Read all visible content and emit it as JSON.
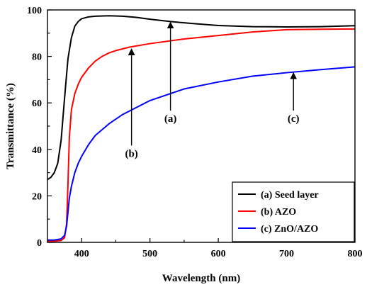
{
  "chart_data": {
    "type": "line",
    "title": "",
    "xlabel": "Wavelength (nm)",
    "ylabel": "Transmittance (%)",
    "xlim": [
      350,
      800
    ],
    "ylim": [
      0,
      100
    ],
    "x_ticks": [
      "400",
      "500",
      "600",
      "700",
      "800"
    ],
    "y_ticks": [
      "0",
      "20",
      "40",
      "60",
      "80",
      "100"
    ],
    "grid": false,
    "legend_position": "bottom-right",
    "series": [
      {
        "name": "(a) Seed layer",
        "color": "#000000",
        "x": [
          350,
          355,
          360,
          365,
          370,
          375,
          380,
          385,
          390,
          395,
          400,
          410,
          420,
          440,
          460,
          480,
          500,
          530,
          560,
          600,
          650,
          700,
          750,
          800
        ],
        "y": [
          27,
          28,
          30,
          34,
          44,
          62,
          79,
          88,
          93,
          95,
          96.2,
          97,
          97.3,
          97.5,
          97.3,
          96.8,
          96,
          95,
          94.2,
          93.3,
          92.8,
          92.7,
          92.8,
          93.2
        ]
      },
      {
        "name": "(b) AZO",
        "color": "#ff0000",
        "x": [
          350,
          360,
          370,
          375,
          378,
          380,
          382,
          385,
          390,
          395,
          400,
          410,
          420,
          430,
          440,
          450,
          470,
          500,
          550,
          600,
          650,
          700,
          750,
          800
        ],
        "y": [
          0.5,
          0.5,
          0.8,
          2,
          8,
          25,
          45,
          57,
          64,
          68,
          71,
          75,
          78,
          80,
          81.5,
          82.5,
          84,
          85.5,
          87.5,
          89,
          90.5,
          91.5,
          91.7,
          91.8
        ]
      },
      {
        "name": "(c) ZnO/AZO",
        "color": "#0000ff",
        "x": [
          350,
          360,
          370,
          375,
          378,
          380,
          382,
          385,
          390,
          395,
          400,
          410,
          420,
          440,
          460,
          480,
          500,
          550,
          600,
          650,
          700,
          750,
          800
        ],
        "y": [
          1,
          1,
          1.5,
          3,
          7,
          13,
          19,
          24,
          30,
          34,
          37,
          42,
          46,
          51,
          55,
          58,
          61,
          66,
          69,
          71.5,
          73,
          74.3,
          75.5
        ]
      }
    ],
    "annotations": [
      {
        "label": "(a)",
        "x": 530,
        "y_label": 53,
        "y_tip": 95,
        "series": "(a) Seed layer"
      },
      {
        "label": "(b)",
        "x": 473,
        "y_label": 38,
        "y_tip": 83.5,
        "series": "(b) AZO"
      },
      {
        "label": "(c)",
        "x": 710,
        "y_label": 53,
        "y_tip": 73.2,
        "series": "(c) ZnO/AZO"
      }
    ]
  }
}
